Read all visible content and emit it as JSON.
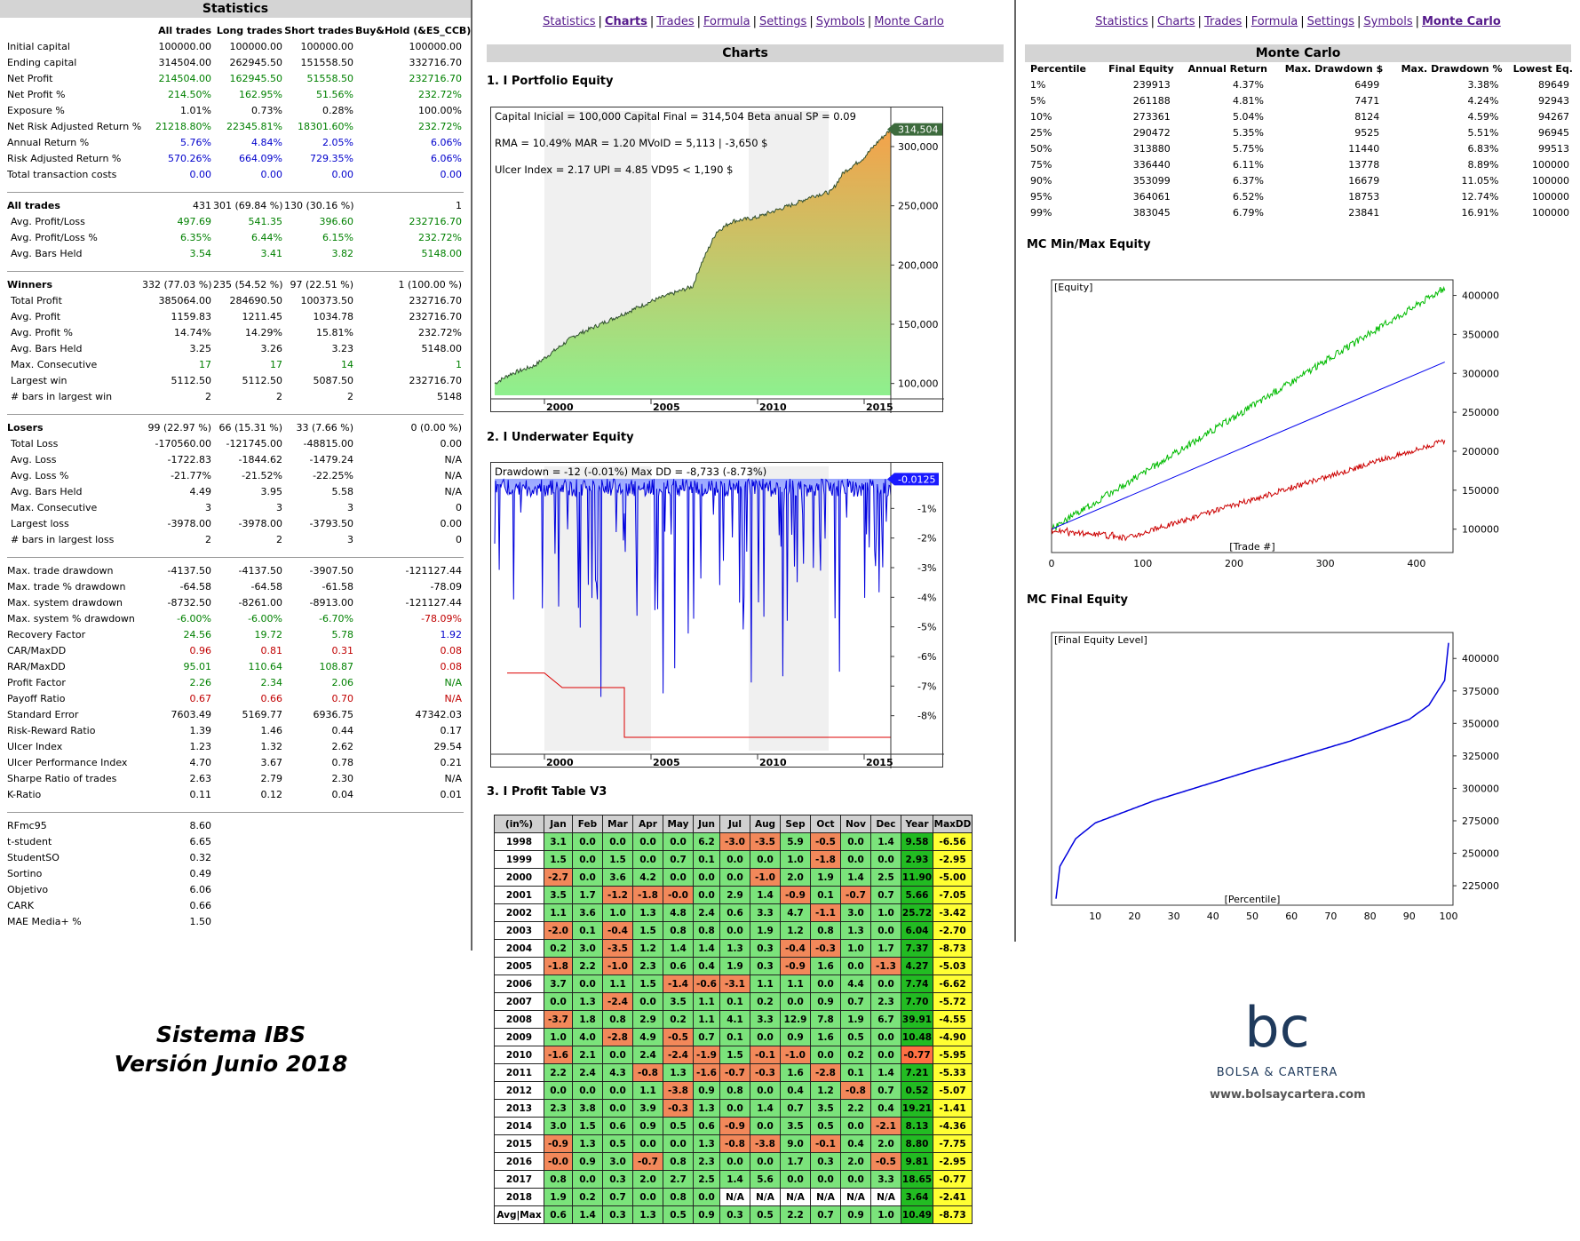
{
  "nav": {
    "items": [
      "Statistics",
      "Charts",
      "Trades",
      "Formula",
      "Settings",
      "Symbols",
      "Monte Carlo"
    ]
  },
  "stats": {
    "title": "Statistics",
    "headers": [
      "",
      "All trades",
      "Long trades",
      "Short trades",
      "Buy&Hold (&ES_CCB)"
    ],
    "groups": [
      [
        [
          "Initial capital",
          "100000.00",
          "100000.00",
          "100000.00",
          "100000.00",
          ""
        ],
        [
          "Ending capital",
          "314504.00",
          "262945.50",
          "151558.50",
          "332716.70",
          ""
        ],
        [
          "Net Profit",
          "214504.00",
          "162945.50",
          "51558.50",
          "232716.70",
          "g"
        ],
        [
          "Net Profit %",
          "214.50%",
          "162.95%",
          "51.56%",
          "232.72%",
          "g"
        ],
        [
          "Exposure %",
          "1.01%",
          "0.73%",
          "0.28%",
          "100.00%",
          ""
        ],
        [
          "Net Risk Adjusted Return %",
          "21218.80%",
          "22345.81%",
          "18301.60%",
          "232.72%",
          "g"
        ],
        [
          "Annual Return %",
          "5.76%",
          "4.84%",
          "2.05%",
          "6.06%",
          "b"
        ],
        [
          "Risk Adjusted Return %",
          "570.26%",
          "664.09%",
          "729.35%",
          "6.06%",
          "b"
        ],
        [
          "Total transaction costs",
          "0.00",
          "0.00",
          "0.00",
          "0.00",
          "b"
        ]
      ],
      [
        [
          "All trades",
          "431",
          "301 (69.84 %)",
          "130 (30.16 %)",
          "1",
          "sec"
        ],
        [
          "Avg. Profit/Loss",
          "497.69",
          "541.35",
          "396.60",
          "232716.70",
          "g"
        ],
        [
          "Avg. Profit/Loss %",
          "6.35%",
          "6.44%",
          "6.15%",
          "232.72%",
          "g"
        ],
        [
          "Avg. Bars Held",
          "3.54",
          "3.41",
          "3.82",
          "5148.00",
          "g"
        ]
      ],
      [
        [
          "Winners",
          "332 (77.03 %)",
          "235 (54.52 %)",
          "97 (22.51 %)",
          "1 (100.00 %)",
          "sec"
        ],
        [
          "Total Profit",
          "385064.00",
          "284690.50",
          "100373.50",
          "232716.70",
          ""
        ],
        [
          "Avg. Profit",
          "1159.83",
          "1211.45",
          "1034.78",
          "232716.70",
          ""
        ],
        [
          "Avg. Profit %",
          "14.74%",
          "14.29%",
          "15.81%",
          "232.72%",
          ""
        ],
        [
          "Avg. Bars Held",
          "3.25",
          "3.26",
          "3.23",
          "5148.00",
          ""
        ],
        [
          "Max. Consecutive",
          "17",
          "17",
          "14",
          "1",
          "g"
        ],
        [
          "Largest win",
          "5112.50",
          "5112.50",
          "5087.50",
          "232716.70",
          ""
        ],
        [
          "# bars in largest win",
          "2",
          "2",
          "2",
          "5148",
          ""
        ]
      ],
      [
        [
          "Losers",
          "99 (22.97 %)",
          "66 (15.31 %)",
          "33 (7.66 %)",
          "0 (0.00 %)",
          "sec"
        ],
        [
          "Total Loss",
          "-170560.00",
          "-121745.00",
          "-48815.00",
          "0.00",
          ""
        ],
        [
          "Avg. Loss",
          "-1722.83",
          "-1844.62",
          "-1479.24",
          "N/A",
          ""
        ],
        [
          "Avg. Loss %",
          "-21.77%",
          "-21.52%",
          "-22.25%",
          "N/A",
          ""
        ],
        [
          "Avg. Bars Held",
          "4.49",
          "3.95",
          "5.58",
          "N/A",
          ""
        ],
        [
          "Max. Consecutive",
          "3",
          "3",
          "3",
          "0",
          ""
        ],
        [
          "Largest loss",
          "-3978.00",
          "-3978.00",
          "-3793.50",
          "0.00",
          ""
        ],
        [
          "# bars in largest loss",
          "2",
          "2",
          "3",
          "0",
          ""
        ]
      ],
      [
        [
          "Max. trade drawdown",
          "-4137.50",
          "-4137.50",
          "-3907.50",
          "-121127.44",
          ""
        ],
        [
          "Max. trade % drawdown",
          "-64.58",
          "-64.58",
          "-61.58",
          "-78.09",
          ""
        ],
        [
          "Max. system drawdown",
          "-8732.50",
          "-8261.00",
          "-8913.00",
          "-121127.44",
          ""
        ],
        [
          "Max. system % drawdown",
          "-6.00%",
          "-6.00%",
          "-6.70%",
          "-78.09%",
          "gr"
        ],
        [
          "Recovery Factor",
          "24.56",
          "19.72",
          "5.78",
          "1.92",
          "gb"
        ],
        [
          "CAR/MaxDD",
          "0.96",
          "0.81",
          "0.31",
          "0.08",
          "r"
        ],
        [
          "RAR/MaxDD",
          "95.01",
          "110.64",
          "108.87",
          "0.08",
          "gr"
        ],
        [
          "Profit Factor",
          "2.26",
          "2.34",
          "2.06",
          "N/A",
          "g"
        ],
        [
          "Payoff Ratio",
          "0.67",
          "0.66",
          "0.70",
          "N/A",
          "r"
        ],
        [
          "Standard Error",
          "7603.49",
          "5169.77",
          "6936.75",
          "47342.03",
          ""
        ],
        [
          "Risk-Reward Ratio",
          "1.39",
          "1.46",
          "0.44",
          "0.17",
          ""
        ],
        [
          "Ulcer Index",
          "1.23",
          "1.32",
          "2.62",
          "29.54",
          ""
        ],
        [
          "Ulcer Performance Index",
          "4.70",
          "3.67",
          "0.78",
          "0.21",
          ""
        ],
        [
          "Sharpe Ratio of trades",
          "2.63",
          "2.79",
          "2.30",
          "N/A",
          ""
        ],
        [
          "K-Ratio",
          "0.11",
          "0.12",
          "0.04",
          "0.01",
          ""
        ]
      ],
      [
        [
          "RFmc95",
          "8.60",
          "",
          "",
          "",
          ""
        ],
        [
          "t-student",
          "6.65",
          "",
          "",
          "",
          ""
        ],
        [
          "StudentSO",
          "0.32",
          "",
          "",
          "",
          ""
        ],
        [
          "Sortino",
          "0.49",
          "",
          "",
          "",
          ""
        ],
        [
          "Objetivo",
          "6.06",
          "",
          "",
          "",
          ""
        ],
        [
          "CARK",
          "0.66",
          "",
          "",
          "",
          ""
        ],
        [
          "MAE Media+ %",
          "1.50",
          "",
          "",
          "",
          ""
        ]
      ]
    ]
  },
  "signature": {
    "line1": "Sistema IBS",
    "line2": "Versión Junio 2018"
  },
  "charts": {
    "title": "Charts",
    "equity_title": "1. I Portfolio Equity",
    "equity_info": [
      "Capital Inicial = 100,000  Capital Final = 314,504  Beta anual SP = 0.09",
      "RMA = 10.49%  MAR = 1.20  MVoID = 5,113 | -3,650 $",
      "Ulcer Index = 2.17  UPI = 4.85  VD95 < 1,190 $"
    ],
    "equity_last": "314,504",
    "equity_yticks": [
      "300,000",
      "250,000",
      "200,000",
      "150,000",
      "100,000"
    ],
    "xticks": [
      "2000",
      "2005",
      "2010",
      "2015"
    ],
    "uw_title": "2. I Underwater Equity",
    "uw_info": "Drawdown = -12 (-0.01%)      Max DD = -8,733 (-8.73%)",
    "uw_last": "-0.0125",
    "uw_yticks": [
      "-1%",
      "-2%",
      "-3%",
      "-4%",
      "-5%",
      "-6%",
      "-7%",
      "-8%"
    ],
    "profit_title": "3. I Profit Table V3"
  },
  "profit_table": {
    "headers": [
      "(in%)",
      "Jan",
      "Feb",
      "Mar",
      "Apr",
      "May",
      "Jun",
      "Jul",
      "Aug",
      "Sep",
      "Oct",
      "Nov",
      "Dec",
      "Year",
      "MaxDD"
    ],
    "rows": [
      [
        "1998",
        "3.1",
        "0.0",
        "0.0",
        "0.0",
        "0.0",
        "6.2",
        "-3.0",
        "-3.5",
        "5.9",
        "-0.5",
        "0.0",
        "1.4",
        "9.58",
        "-6.56"
      ],
      [
        "1999",
        "1.5",
        "0.0",
        "1.5",
        "0.0",
        "0.7",
        "0.1",
        "0.0",
        "0.0",
        "1.0",
        "-1.8",
        "0.0",
        "0.0",
        "2.93",
        "-2.95"
      ],
      [
        "2000",
        "-2.7",
        "0.0",
        "3.6",
        "4.2",
        "0.0",
        "0.0",
        "0.0",
        "-1.0",
        "2.0",
        "1.9",
        "1.4",
        "2.5",
        "11.90",
        "-5.00"
      ],
      [
        "2001",
        "3.5",
        "1.7",
        "-1.2",
        "-1.8",
        "-0.0",
        "0.0",
        "2.9",
        "1.4",
        "-0.9",
        "0.1",
        "-0.7",
        "0.7",
        "5.66",
        "-7.05"
      ],
      [
        "2002",
        "1.1",
        "3.6",
        "1.0",
        "1.3",
        "4.8",
        "2.4",
        "0.6",
        "3.3",
        "4.7",
        "-1.1",
        "3.0",
        "1.0",
        "25.72",
        "-3.42"
      ],
      [
        "2003",
        "-2.0",
        "0.1",
        "-0.4",
        "1.5",
        "0.8",
        "0.8",
        "0.0",
        "1.9",
        "1.2",
        "0.8",
        "1.3",
        "0.0",
        "6.04",
        "-2.70"
      ],
      [
        "2004",
        "0.2",
        "3.0",
        "-3.5",
        "1.2",
        "1.4",
        "1.4",
        "1.3",
        "0.3",
        "-0.4",
        "-0.3",
        "1.0",
        "1.7",
        "7.37",
        "-8.73"
      ],
      [
        "2005",
        "-1.8",
        "2.2",
        "-1.0",
        "2.3",
        "0.6",
        "0.4",
        "1.9",
        "0.3",
        "-0.9",
        "1.6",
        "0.0",
        "-1.3",
        "4.27",
        "-5.03"
      ],
      [
        "2006",
        "3.7",
        "0.0",
        "1.1",
        "1.5",
        "-1.4",
        "-0.6",
        "-3.1",
        "1.1",
        "1.1",
        "0.0",
        "4.4",
        "0.0",
        "7.74",
        "-6.62"
      ],
      [
        "2007",
        "0.0",
        "1.3",
        "-2.4",
        "0.0",
        "3.5",
        "1.1",
        "0.1",
        "0.2",
        "0.0",
        "0.9",
        "0.7",
        "2.3",
        "7.70",
        "-5.72"
      ],
      [
        "2008",
        "-3.7",
        "1.8",
        "0.8",
        "2.9",
        "0.2",
        "1.1",
        "4.1",
        "3.3",
        "12.9",
        "7.8",
        "1.9",
        "6.7",
        "39.91",
        "-4.55"
      ],
      [
        "2009",
        "1.0",
        "4.0",
        "-2.8",
        "4.9",
        "-0.5",
        "0.7",
        "0.1",
        "0.0",
        "0.9",
        "1.6",
        "0.5",
        "0.0",
        "10.48",
        "-4.90"
      ],
      [
        "2010",
        "-1.6",
        "2.1",
        "0.0",
        "2.4",
        "-2.4",
        "-1.9",
        "1.5",
        "-0.1",
        "-1.0",
        "0.0",
        "0.2",
        "0.0",
        "-0.77",
        "-5.95"
      ],
      [
        "2011",
        "2.2",
        "2.4",
        "4.3",
        "-0.8",
        "1.3",
        "-1.6",
        "-0.7",
        "-0.3",
        "1.6",
        "-2.8",
        "0.1",
        "1.4",
        "7.21",
        "-5.33"
      ],
      [
        "2012",
        "0.0",
        "0.0",
        "0.0",
        "1.1",
        "-3.8",
        "0.9",
        "0.8",
        "0.0",
        "0.4",
        "1.2",
        "-0.8",
        "0.7",
        "0.52",
        "-5.07"
      ],
      [
        "2013",
        "2.3",
        "3.8",
        "0.0",
        "3.9",
        "-0.3",
        "1.3",
        "0.0",
        "1.4",
        "0.7",
        "3.5",
        "2.2",
        "0.4",
        "19.21",
        "-1.41"
      ],
      [
        "2014",
        "3.0",
        "1.5",
        "0.6",
        "0.9",
        "0.5",
        "0.6",
        "-0.9",
        "0.0",
        "3.5",
        "0.5",
        "0.0",
        "-2.1",
        "8.13",
        "-4.36"
      ],
      [
        "2015",
        "-0.9",
        "1.3",
        "0.5",
        "0.0",
        "0.0",
        "1.3",
        "-0.8",
        "-3.8",
        "9.0",
        "-0.1",
        "0.4",
        "2.0",
        "8.80",
        "-7.75"
      ],
      [
        "2016",
        "-0.0",
        "0.9",
        "3.0",
        "-0.7",
        "0.8",
        "2.3",
        "0.0",
        "0.0",
        "1.7",
        "0.3",
        "2.0",
        "-0.5",
        "9.81",
        "-2.95"
      ],
      [
        "2017",
        "0.8",
        "0.0",
        "0.3",
        "2.0",
        "2.7",
        "2.5",
        "1.4",
        "5.6",
        "0.0",
        "0.0",
        "0.0",
        "3.3",
        "18.65",
        "-0.77"
      ],
      [
        "2018",
        "1.9",
        "0.2",
        "0.7",
        "0.0",
        "0.8",
        "0.0",
        "N/A",
        "N/A",
        "N/A",
        "N/A",
        "N/A",
        "N/A",
        "3.64",
        "-2.41"
      ],
      [
        "Avg|Max",
        "0.6",
        "1.4",
        "0.3",
        "1.3",
        "0.5",
        "0.9",
        "0.3",
        "0.5",
        "2.2",
        "0.7",
        "0.9",
        "1.0",
        "10.49",
        "-8.73"
      ]
    ]
  },
  "montecarlo": {
    "title": "Monte Carlo",
    "headers": [
      "Percentile",
      "Final Equity",
      "Annual Return",
      "Max. Drawdown $",
      "Max. Drawdown %",
      "Lowest Eq."
    ],
    "rows": [
      [
        "1%",
        "239913",
        "4.37%",
        "6499",
        "3.38%",
        "89649"
      ],
      [
        "5%",
        "261188",
        "4.81%",
        "7471",
        "4.24%",
        "92943"
      ],
      [
        "10%",
        "273361",
        "5.04%",
        "8124",
        "4.59%",
        "94267"
      ],
      [
        "25%",
        "290472",
        "5.35%",
        "9525",
        "5.51%",
        "96945"
      ],
      [
        "50%",
        "313880",
        "5.75%",
        "11440",
        "6.83%",
        "99513"
      ],
      [
        "75%",
        "336440",
        "6.11%",
        "13778",
        "8.89%",
        "100000"
      ],
      [
        "90%",
        "353099",
        "6.37%",
        "16679",
        "11.05%",
        "100000"
      ],
      [
        "95%",
        "364061",
        "6.52%",
        "18753",
        "12.74%",
        "100000"
      ],
      [
        "99%",
        "383045",
        "6.79%",
        "23841",
        "16.91%",
        "100000"
      ]
    ],
    "minmax_title": "MC Min/Max Equity",
    "minmax_label": "[Equity]",
    "minmax_xlabel": "[Trade #]",
    "minmax_yticks": [
      "400000",
      "350000",
      "300000",
      "250000",
      "200000",
      "150000",
      "100000"
    ],
    "minmax_xticks": [
      "0",
      "100",
      "200",
      "300",
      "400"
    ],
    "final_title": "MC Final Equity",
    "final_label": "[Final Equity Level]",
    "final_xlabel": "[Percentile]",
    "final_yticks": [
      "400000",
      "375000",
      "350000",
      "325000",
      "300000",
      "275000",
      "250000",
      "225000"
    ],
    "final_xticks": [
      "10",
      "20",
      "30",
      "40",
      "50",
      "60",
      "70",
      "80",
      "90",
      "100"
    ]
  },
  "brand": {
    "letters": "bc",
    "name": "BOLSA & CARTERA",
    "url": "www.bolsaycartera.com",
    "color": "#1f3a5c"
  }
}
